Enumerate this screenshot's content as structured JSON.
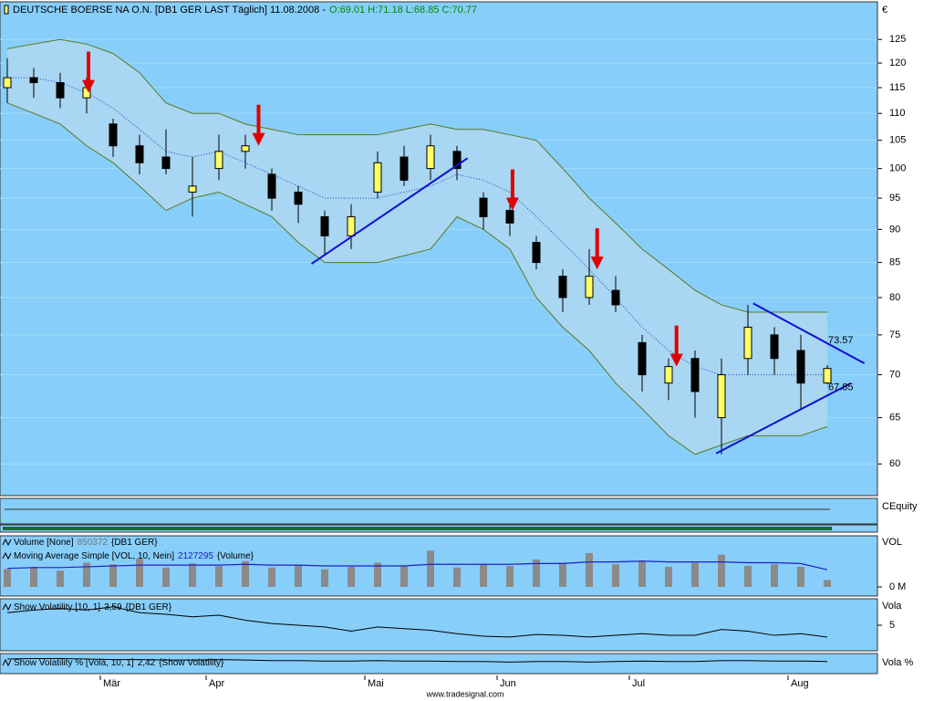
{
  "chart_data": [
    {
      "type": "candlestick",
      "title": "DEUTSCHE BOERSE NA O.N. [DB1 GER LAST Täglich] 11.08.2008 -",
      "ohlc_label": "O:69.01 H:71.18 L:68.85 C:70.77",
      "axis_label": "€",
      "categories": [
        null,
        null,
        null,
        null,
        "Mär",
        null,
        null,
        null,
        "Apr",
        null,
        null,
        null,
        null,
        null,
        "Mai",
        null,
        null,
        null,
        null,
        "Jun",
        null,
        null,
        null,
        null,
        "Jul",
        null,
        null,
        null,
        null,
        null,
        "Aug",
        null
      ],
      "open": [
        115,
        117,
        116,
        113,
        108,
        104,
        102,
        96,
        100,
        103,
        99,
        96,
        92,
        89,
        96,
        102,
        100,
        103,
        95,
        93,
        88,
        83,
        80,
        81,
        74,
        69,
        72,
        65,
        72,
        75,
        73,
        69.01
      ],
      "high": [
        121,
        119,
        118,
        117,
        109,
        106,
        107,
        102,
        106,
        106,
        100,
        97,
        93,
        94,
        103,
        104,
        106,
        104,
        96,
        94,
        89,
        84,
        87,
        83,
        75,
        72,
        73,
        72,
        79,
        76,
        75,
        71.18
      ],
      "low": [
        112,
        113,
        111,
        110,
        102,
        99,
        99,
        92,
        98,
        100,
        93,
        91,
        86,
        87,
        95,
        97,
        98,
        98,
        90,
        89,
        84,
        78,
        79,
        78,
        68,
        67,
        65,
        61,
        70,
        70,
        66,
        68.85
      ],
      "close": [
        117,
        116,
        113,
        115,
        104,
        101,
        100,
        97,
        103,
        104,
        95,
        94,
        89,
        92,
        101,
        98,
        104,
        100,
        92,
        91,
        85,
        80,
        83,
        79,
        70,
        71,
        68,
        70,
        76,
        72,
        69,
        70.77
      ],
      "up_color": "#ffff66",
      "down_color": "#000000",
      "series": [
        {
          "name": "Upper",
          "color": "#5a7a20",
          "values": [
            123,
            124,
            125,
            124,
            122,
            118,
            112,
            110,
            110,
            108,
            107,
            106,
            106,
            106,
            106,
            107,
            108,
            107,
            107,
            106,
            105,
            100,
            95,
            91,
            87,
            84,
            81,
            79,
            78,
            78,
            78,
            78
          ]
        },
        {
          "name": "Lower",
          "color": "#5a7a20",
          "values": [
            112,
            110,
            108,
            104,
            101,
            97,
            93,
            95,
            96,
            94,
            92,
            88,
            85,
            85,
            85,
            86,
            87,
            92,
            90,
            87,
            80,
            76,
            73,
            69,
            66,
            63,
            61,
            62,
            63,
            63,
            63,
            64
          ]
        },
        {
          "name": "Middle",
          "color": "#2040c0",
          "values": [
            117,
            117,
            116,
            114,
            111,
            107,
            103,
            102,
            103,
            101,
            99,
            97,
            95,
            95,
            95,
            96,
            97,
            99,
            98,
            96,
            92,
            88,
            84,
            80,
            76,
            73,
            71,
            70,
            70,
            70,
            70,
            70
          ]
        }
      ],
      "band_fill": "#a9d6f2",
      "trendlines": [
        {
          "x": [
            11.5,
            17.4
          ],
          "y": [
            84.8,
            101.8
          ]
        },
        {
          "x": [
            28.2,
            32.4
          ],
          "y": [
            79.2,
            71.4
          ]
        },
        {
          "x": [
            26.8,
            31.9
          ],
          "y": [
            61.1,
            69.0
          ]
        }
      ],
      "trendline_color": "#1010d0",
      "arrows": {
        "x": [
          3.07,
          9.5,
          19.1,
          22.3,
          25.3
        ],
        "y": [
          114,
          104,
          93,
          84,
          71
        ],
        "color": "#e00000"
      },
      "price_labels": [
        73.57,
        67.85
      ],
      "log_scale": true,
      "ylim": [
        56.8,
        133.4
      ],
      "yticks": [
        60,
        65,
        70,
        75,
        80,
        85,
        90,
        95,
        100,
        105,
        110,
        115,
        120,
        125
      ],
      "grid": true
    },
    {
      "type": "empty",
      "axis_label": "CEquity"
    },
    {
      "type": "bar",
      "axis_label": "VOL",
      "legend": [
        {
          "name": "Volume [None]",
          "value_text": "850372",
          "source": "{DB1 GER}"
        },
        {
          "name": "Moving Average Simple [VOL, 10, Nein]",
          "value_text": "2127295",
          "source": "{Volume}"
        }
      ],
      "series": [
        {
          "name": "Volume [None]",
          "color": "#8a8a8a",
          "values": [
            2.2,
            2.5,
            2.0,
            3.0,
            2.8,
            3.5,
            2.4,
            2.9,
            2.6,
            3.2,
            2.4,
            2.7,
            2.2,
            2.5,
            3.0,
            2.6,
            4.5,
            2.4,
            2.8,
            2.6,
            3.4,
            3.0,
            4.2,
            2.8,
            3.2,
            2.5,
            3.0,
            4.0,
            2.6,
            2.8,
            2.5,
            0.85
          ]
        },
        {
          "name": "Moving Average Simple [VOL, 10, Nein]",
          "color": "#2020c0",
          "values": [
            2.3,
            2.4,
            2.4,
            2.5,
            2.6,
            2.7,
            2.7,
            2.7,
            2.7,
            2.8,
            2.7,
            2.7,
            2.6,
            2.6,
            2.6,
            2.6,
            2.8,
            2.8,
            2.8,
            2.8,
            2.9,
            2.9,
            3.1,
            3.1,
            3.2,
            3.1,
            3.1,
            3.1,
            3.0,
            3.0,
            2.9,
            2.13
          ]
        }
      ],
      "ylim": [
        0,
        6
      ],
      "yticks": [
        {
          "value": 0,
          "label": "0 M"
        }
      ]
    },
    {
      "type": "line",
      "axis_label": "Vola",
      "legend": [
        {
          "name": "Show Volatility [10, 1]",
          "value_text": "3,59",
          "source": "{DB1 GER}"
        }
      ],
      "series": [
        {
          "name": "Show Volatility [10, 1]",
          "color": "#000000",
          "values": [
            6.5,
            6.8,
            7.0,
            6.8,
            7.2,
            6.5,
            6.3,
            6.0,
            6.2,
            5.6,
            5.2,
            5.0,
            4.8,
            4.3,
            4.8,
            4.6,
            4.4,
            4.0,
            3.7,
            3.6,
            3.9,
            3.8,
            3.6,
            3.8,
            4.0,
            3.8,
            3.8,
            4.5,
            4.3,
            3.8,
            4.0,
            3.59
          ]
        }
      ],
      "ylim": [
        1.96,
        8.15
      ],
      "yticks": [
        5
      ]
    },
    {
      "type": "line",
      "axis_label": "Vola %",
      "legend": [
        {
          "name": "Show Volatility % [Vola, 10, 1]",
          "value_text": "2,42",
          "source": "{Show Volatility}"
        }
      ],
      "series": [
        {
          "name": "Show Volatility % [Vola, 10, 1]",
          "color": "#000000",
          "values": [
            2.9,
            3.0,
            3.0,
            2.9,
            2.8,
            2.8,
            2.7,
            2.7,
            2.8,
            2.7,
            2.6,
            2.6,
            2.5,
            2.5,
            2.6,
            2.5,
            2.5,
            2.4,
            2.4,
            2.3,
            2.4,
            2.4,
            2.3,
            2.4,
            2.5,
            2.4,
            2.4,
            2.6,
            2.6,
            2.5,
            2.5,
            2.42
          ]
        }
      ],
      "ylim": [
        0,
        4
      ],
      "yticks": []
    }
  ],
  "footer": "www.tradesignal.com"
}
